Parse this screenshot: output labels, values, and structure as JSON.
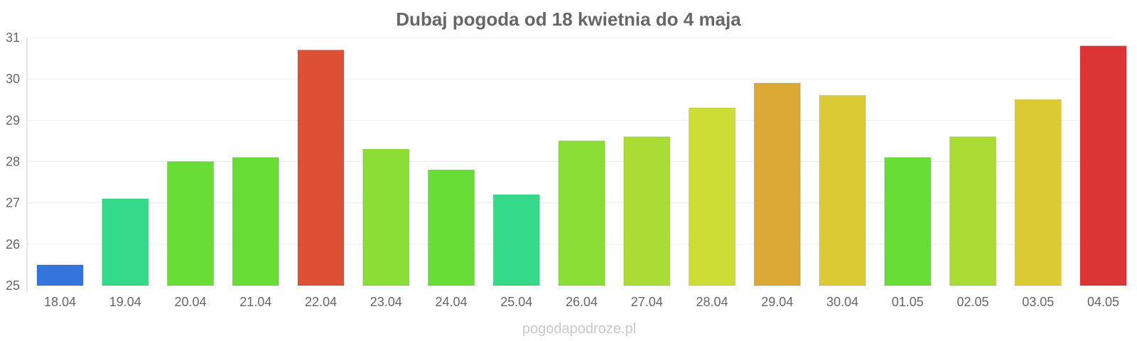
{
  "chart_data": {
    "type": "bar",
    "title": "Dubaj pogoda od 18 kwietnia do 4 maja",
    "xlabel": "",
    "ylabel": "",
    "ylim": [
      25,
      31
    ],
    "yticks": [
      "25",
      "26",
      "27",
      "28",
      "29",
      "30",
      "31"
    ],
    "categories": [
      "18.04",
      "19.04",
      "20.04",
      "21.04",
      "22.04",
      "23.04",
      "24.04",
      "25.04",
      "26.04",
      "27.04",
      "28.04",
      "29.04",
      "30.04",
      "01.05",
      "02.05",
      "03.05",
      "04.05"
    ],
    "values": [
      25.5,
      27.1,
      28.0,
      28.1,
      30.7,
      28.3,
      27.8,
      27.2,
      28.5,
      28.6,
      29.3,
      29.9,
      29.6,
      28.1,
      28.6,
      29.5,
      30.8
    ],
    "colors": [
      "#3375dc",
      "#35d98a",
      "#67dd35",
      "#67dd35",
      "#dd5035",
      "#8ade35",
      "#67dd35",
      "#35d98a",
      "#8ade35",
      "#abdc35",
      "#cedd35",
      "#dca935",
      "#dcca35",
      "#67dd35",
      "#abdc35",
      "#dcca35",
      "#dc3535"
    ],
    "grid": true,
    "legend": "none"
  },
  "watermark": "pogodapodroze.pl"
}
